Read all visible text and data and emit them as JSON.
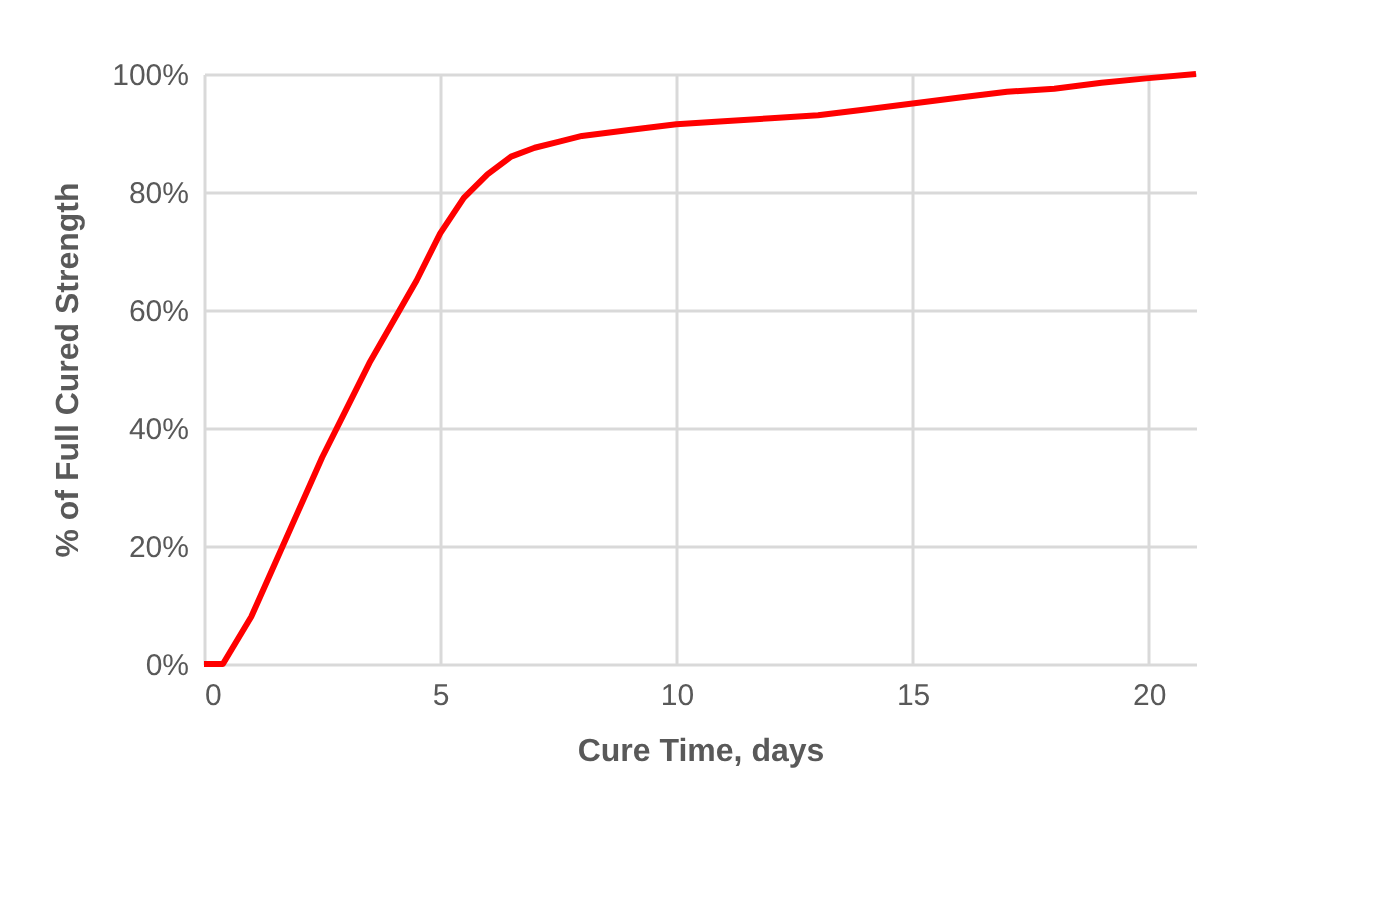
{
  "chart_data": {
    "type": "line",
    "xlabel": "Cure Time, days",
    "ylabel": "% of Full Cured Strength",
    "x": [
      0,
      0.4,
      1,
      1.5,
      2,
      2.5,
      3,
      3.5,
      4,
      4.5,
      5,
      5.5,
      6,
      6.5,
      7,
      7.5,
      8,
      9,
      10,
      11,
      12,
      13,
      14,
      15,
      16,
      17,
      18,
      19,
      20,
      21
    ],
    "series": [
      {
        "color": "#ff0000",
        "values": [
          0,
          0,
          8,
          17,
          26,
          35,
          43,
          51,
          58,
          65,
          73,
          79,
          83,
          86,
          87.5,
          88.5,
          89.5,
          90.5,
          91.5,
          92,
          92.5,
          93,
          94,
          95,
          96,
          97,
          97.5,
          98.5,
          99.3,
          100
        ]
      }
    ],
    "xlim": [
      0,
      21
    ],
    "xticks": [
      0,
      5,
      10,
      15,
      20
    ],
    "ylim": [
      0,
      100
    ],
    "yticks": [
      {
        "value": 0,
        "label": "0%"
      },
      {
        "value": 20,
        "label": "20%"
      },
      {
        "value": 40,
        "label": "40%"
      },
      {
        "value": 60,
        "label": "60%"
      },
      {
        "value": 80,
        "label": "80%"
      },
      {
        "value": 100,
        "label": "100%"
      }
    ],
    "grid": true,
    "marker": "none",
    "line_style": "solid",
    "legend": false
  }
}
